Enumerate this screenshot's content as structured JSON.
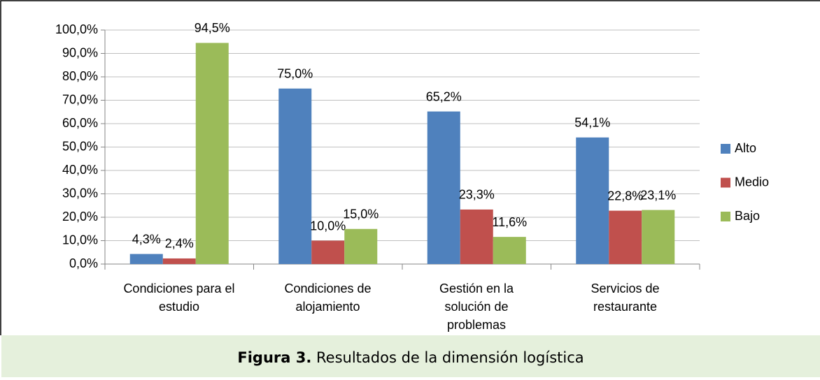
{
  "chart_data": {
    "type": "bar",
    "categories": [
      "Condiciones para el\nestudio",
      "Condiciones de\nalojamiento",
      "Gestión en la\nsolución de\nproblemas",
      "Servicios de\nrestaurante"
    ],
    "series": [
      {
        "name": "Alto",
        "color": "#4f81bd",
        "values": [
          4.3,
          75.0,
          65.2,
          54.1
        ],
        "value_labels": [
          "4,3%",
          "75,0%",
          "65,2%",
          "54,1%"
        ]
      },
      {
        "name": "Medio",
        "color": "#c0504d",
        "values": [
          2.4,
          10.0,
          23.3,
          22.8
        ],
        "value_labels": [
          "2,4%",
          "10,0%",
          "23,3%",
          "22,8%"
        ]
      },
      {
        "name": "Bajo",
        "color": "#9bbb59",
        "values": [
          94.5,
          15.0,
          11.6,
          23.1
        ],
        "value_labels": [
          "94,5%",
          "15,0%",
          "11,6%",
          "23,1%"
        ]
      }
    ],
    "ylim": [
      0,
      100
    ],
    "yticks": [
      {
        "value": 0,
        "label": "0,0%"
      },
      {
        "value": 10,
        "label": "10,0%"
      },
      {
        "value": 20,
        "label": "20,0%"
      },
      {
        "value": 30,
        "label": "30,0%"
      },
      {
        "value": 40,
        "label": "40,0%"
      },
      {
        "value": 50,
        "label": "50,0%"
      },
      {
        "value": 60,
        "label": "60,0%"
      },
      {
        "value": 70,
        "label": "70,0%"
      },
      {
        "value": 80,
        "label": "80,0%"
      },
      {
        "value": 90,
        "label": "90,0%"
      },
      {
        "value": 100,
        "label": "100,0%"
      }
    ],
    "grid": true,
    "legend": "right"
  },
  "caption": {
    "label": "Figura 3.",
    "text": "Resultados de la dimensión logística"
  }
}
